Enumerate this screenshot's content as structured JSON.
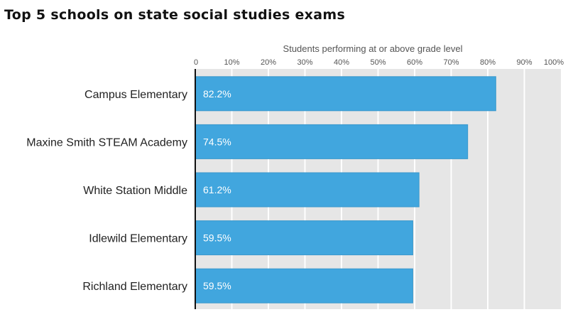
{
  "chart_data": {
    "type": "bar",
    "orientation": "horizontal",
    "title": "Top 5 schools on state social studies exams",
    "xlabel": "Students performing at or above grade level",
    "ylabel": "",
    "xlim": [
      0,
      100
    ],
    "ticks": [
      0,
      10,
      20,
      30,
      40,
      50,
      60,
      70,
      80,
      90,
      100
    ],
    "tick_labels": [
      "0",
      "10%",
      "20%",
      "30%",
      "40%",
      "50%",
      "60%",
      "70%",
      "80%",
      "90%",
      "100%"
    ],
    "categories": [
      "Campus Elementary",
      "Maxine Smith STEAM Academy",
      "White Station Middle",
      "Idlewild Elementary",
      "Richland Elementary"
    ],
    "values": [
      82.2,
      74.5,
      61.2,
      59.5,
      59.5
    ],
    "data_labels": [
      "82.2%",
      "74.5%",
      "61.2%",
      "59.5%",
      "59.5%"
    ],
    "grid": true,
    "legend": "none",
    "colors": {
      "bar": "#41a6de",
      "bar_edge": "#3a98cc",
      "plot_bg": "#e6e6e6",
      "grid": "#ffffff",
      "axis": "#111111"
    }
  }
}
